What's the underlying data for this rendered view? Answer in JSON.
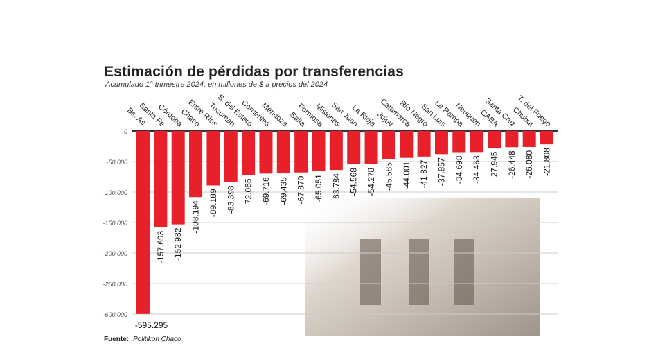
{
  "chart_data": {
    "type": "bar",
    "title": "Estimación de pérdidas por transferencias",
    "subtitle": "Acumulado 1° trimestre 2024, en millones de $ a precios del 2024",
    "source_label": "Fuente:",
    "source": "Politikon Chaco",
    "categories": [
      "Bs. As.",
      "Santa Fe",
      "Córdoba",
      "Chaco",
      "Entre Ríos",
      "Tucumán",
      "S. del Estero",
      "Corrientes",
      "Mendoza",
      "Salta",
      "Formosa",
      "Misiones",
      "San Juan",
      "La Rioja",
      "Jujuy",
      "Catamarca",
      "Río Negro",
      "San Luis",
      "La Pampa",
      "Neuquén",
      "CABA",
      "Santa Cruz",
      "Chubut",
      "T. del Fuego"
    ],
    "values": [
      -595295,
      -157693,
      -152982,
      -108194,
      -89189,
      -83398,
      -72065,
      -69716,
      -69435,
      -67870,
      -65051,
      -63784,
      -54568,
      -54278,
      -45585,
      -44001,
      -41827,
      -37857,
      -34698,
      -34463,
      -27945,
      -26448,
      -26080,
      -21808
    ],
    "value_labels": [
      "-595.295",
      "-157.693",
      "-152.982",
      "-108.194",
      "-89.189",
      "-83.398",
      "-72.065",
      "-69.716",
      "-69.435",
      "-67.870",
      "-65.051",
      "-63.784",
      "-54.568",
      "-54.278",
      "-45.585",
      "-44.001",
      "-41.827",
      "-37.857",
      "-34.698",
      "-34.463",
      "-27.945",
      "-26.448",
      "-26.080",
      "-21.808"
    ],
    "yticks": [
      0,
      -50000,
      -100000,
      -150000,
      -200000,
      -250000,
      -600000
    ],
    "ytick_labels": [
      "0",
      "-50.000",
      "-100.000",
      "-150.000",
      "-200.000",
      "-250.000",
      "-600.000"
    ],
    "ylim": [
      -600000,
      0
    ],
    "axis_break": "between -250.000 and -600.000",
    "bar_color": "#e8202a",
    "grid": true
  }
}
